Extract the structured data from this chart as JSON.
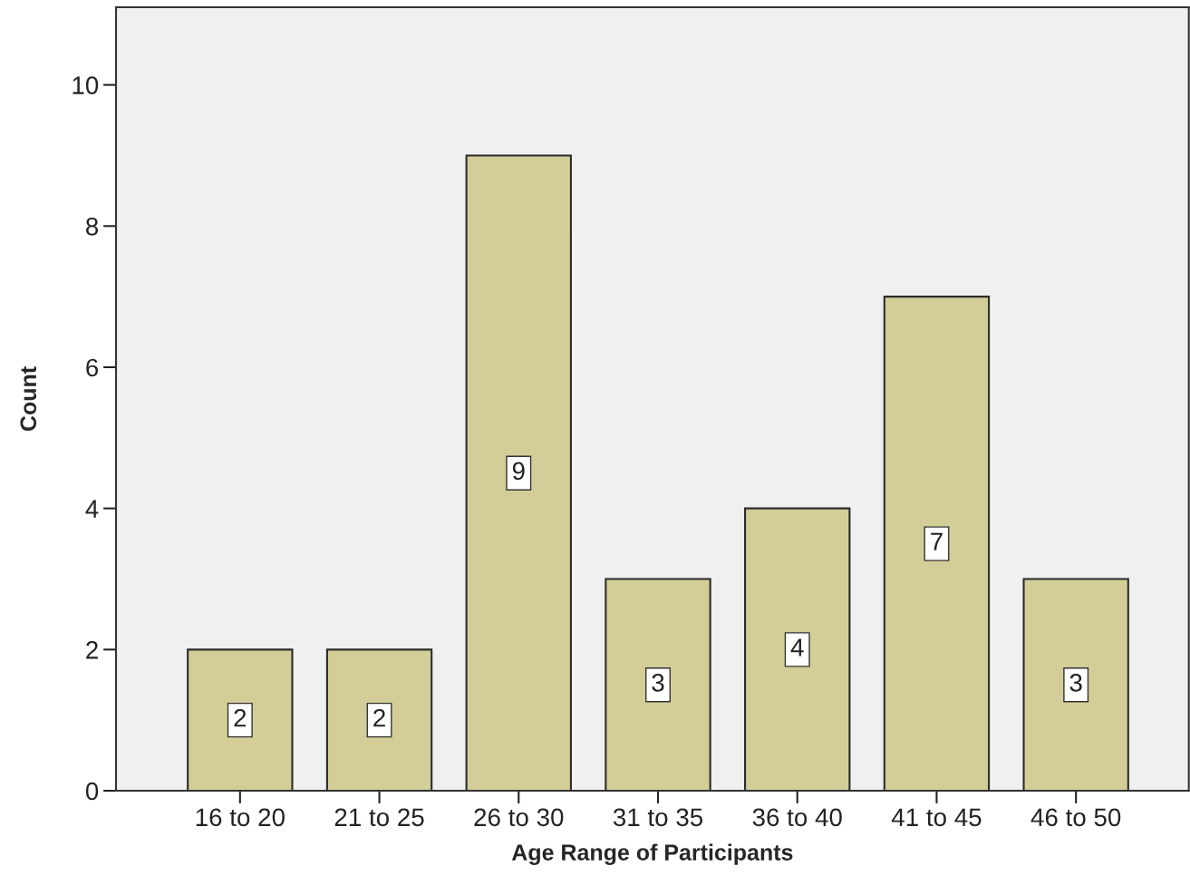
{
  "chart_data": {
    "type": "bar",
    "xlabel": "Age Range of Participants",
    "ylabel": "Count",
    "categories": [
      "16 to 20",
      "21 to 25",
      "26 to 30",
      "31 to 35",
      "36 to 40",
      "41 to 45",
      "46 to 50"
    ],
    "values": [
      2,
      2,
      9,
      3,
      4,
      7,
      3
    ],
    "color": "#d3ce97",
    "ylim": [
      0,
      11.1
    ],
    "yticks": [
      0,
      2,
      4,
      6,
      8,
      10
    ],
    "grid": false,
    "data_labels": true
  }
}
